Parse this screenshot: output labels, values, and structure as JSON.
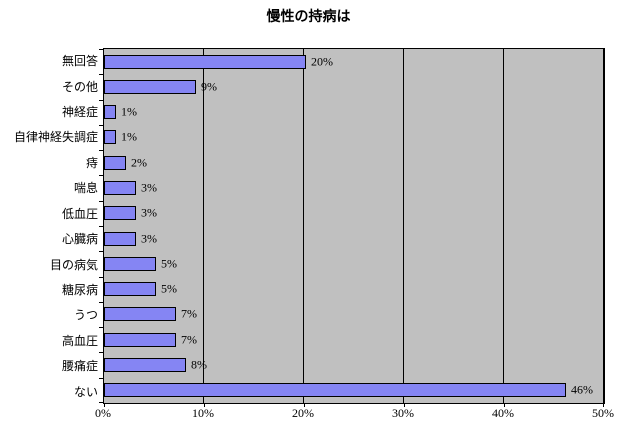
{
  "chart_data": {
    "type": "bar",
    "orientation": "horizontal",
    "title": "慢性の持病は",
    "categories": [
      "無回答",
      "その他",
      "神経症",
      "自律神経失調症",
      "痔",
      "喘息",
      "低血圧",
      "心臓病",
      "目の病気",
      "糖尿病",
      "うつ",
      "高血圧",
      "腰痛症",
      "ない"
    ],
    "values": [
      20,
      9,
      1,
      1,
      2,
      3,
      3,
      3,
      5,
      5,
      7,
      7,
      8,
      46
    ],
    "value_labels": [
      "20%",
      "9%",
      "1%",
      "1%",
      "2%",
      "3%",
      "3%",
      "3%",
      "5%",
      "5%",
      "7%",
      "7%",
      "8%",
      "46%"
    ],
    "xlabel": "",
    "ylabel": "",
    "xlim": [
      0,
      50
    ],
    "x_ticks": [
      "0%",
      "10%",
      "20%",
      "30%",
      "40%",
      "50%"
    ],
    "x_tick_values": [
      0,
      10,
      20,
      30,
      40,
      50
    ],
    "grid": "vertical-only",
    "legend": "none",
    "colors": {
      "bar_fill": "#8585f3",
      "bar_border": "#000000",
      "plot_background": "#c0c0c0",
      "gridline": "#000000",
      "axis": "#000000",
      "page_background": "#ffffff",
      "text": "#000000"
    }
  }
}
